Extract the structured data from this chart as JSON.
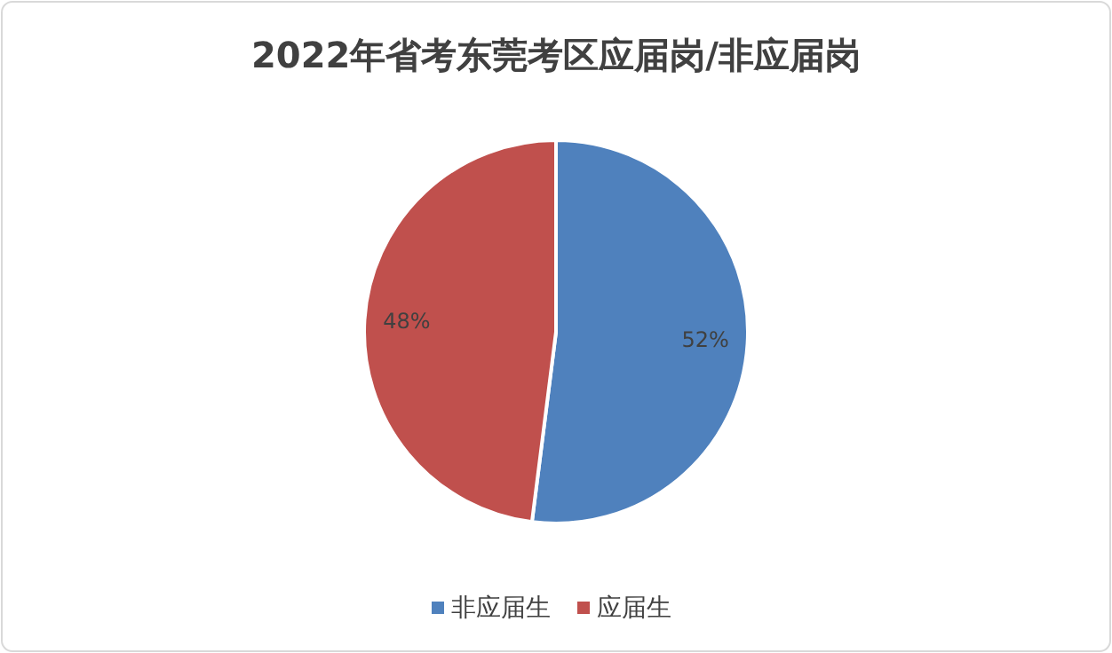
{
  "chart_data": {
    "type": "pie",
    "title": "2022年省考东莞考区应届岗/非应届岗",
    "categories": [
      "非应届生",
      "应届生"
    ],
    "values": [
      52,
      48
    ],
    "colors": [
      "#4f81bd",
      "#c0504d"
    ],
    "value_labels": [
      "52%",
      "48%"
    ],
    "legend": "bottom"
  }
}
